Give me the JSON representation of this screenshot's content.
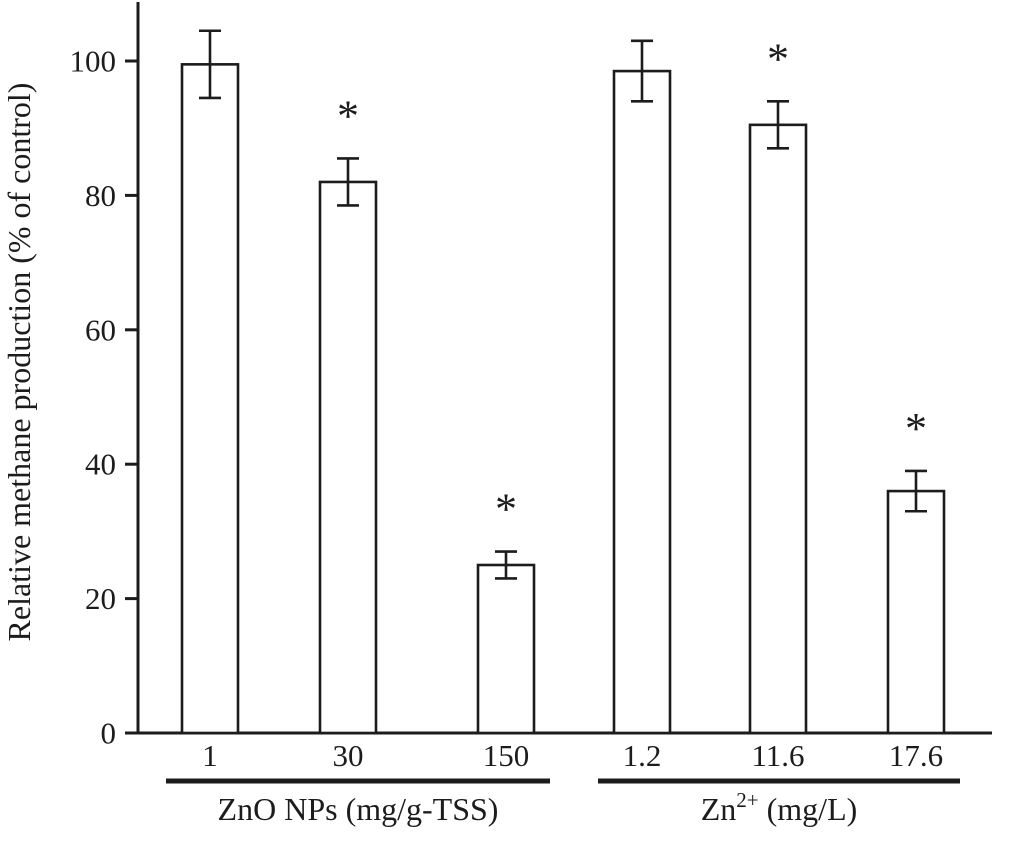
{
  "figure": {
    "title": "",
    "significance_marker": "*"
  },
  "chart_data": {
    "type": "bar",
    "title": "",
    "xlabel": "",
    "ylabel": "Relative methane production (% of control)",
    "ylim": [
      0,
      108
    ],
    "yticks": [
      0,
      20,
      40,
      60,
      80,
      100
    ],
    "grid": false,
    "legend": "none",
    "background": "#ffffff",
    "bar_fill": "#ffffff",
    "bar_stroke": "#1c1c1c",
    "significance_marker": "*",
    "groups": [
      {
        "label": "ZnO NPs (mg/g-TSS)",
        "label_parts": [
          {
            "text": "ZnO NPs (mg/g-TSS)"
          }
        ],
        "categories": [
          "1",
          "30",
          "150"
        ],
        "values": [
          99.5,
          82,
          25
        ],
        "errors": [
          5,
          3.5,
          2
        ],
        "significant": [
          false,
          true,
          true
        ]
      },
      {
        "label": "Zn2+ (mg/L)",
        "label_parts": [
          {
            "text": "Zn"
          },
          {
            "text": "2+",
            "sup": true
          },
          {
            "text": " (mg/L)"
          }
        ],
        "categories": [
          "1.2",
          "11.6",
          "17.6"
        ],
        "values": [
          98.5,
          90.5,
          36
        ],
        "errors": [
          4.5,
          3.5,
          3
        ],
        "significant": [
          false,
          true,
          true
        ]
      }
    ]
  }
}
